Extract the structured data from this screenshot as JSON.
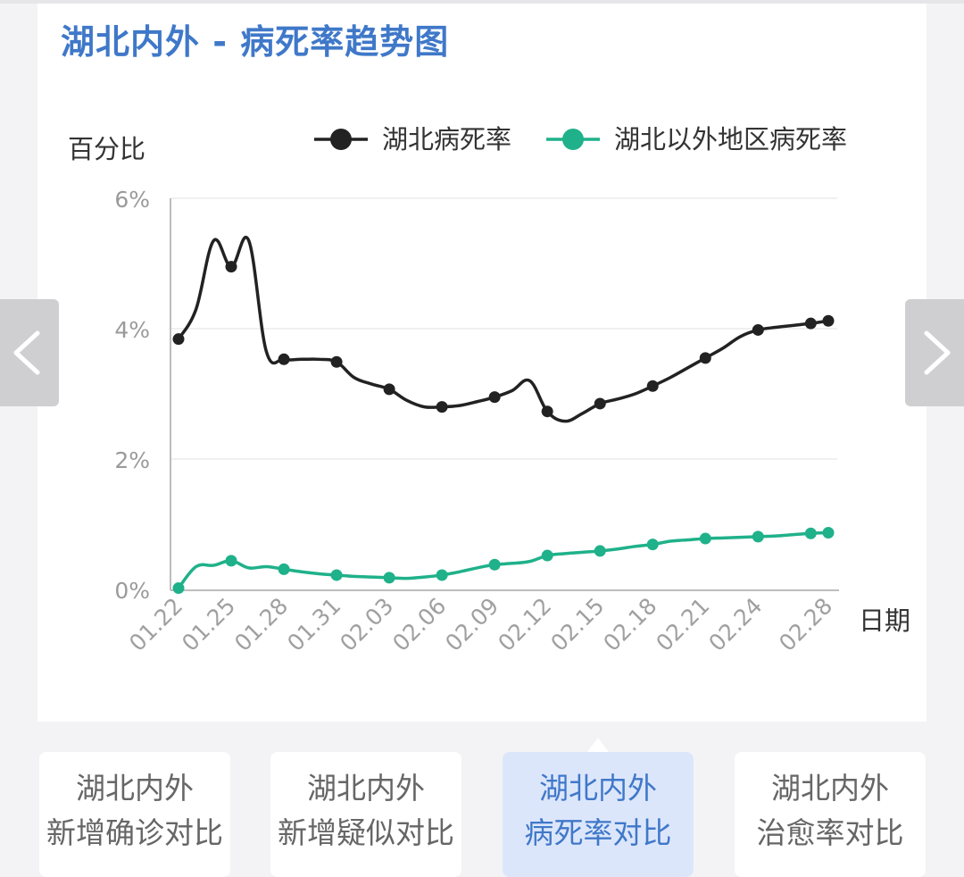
{
  "header": {
    "title": "湖北内外 - 病死率趋势图"
  },
  "chart_data": {
    "type": "line",
    "title": "湖北内外 - 病死率趋势图",
    "ylabel": "百分比",
    "xlabel": "日期",
    "ylim": [
      0,
      6
    ],
    "yticks": [
      "0%",
      "2%",
      "4%",
      "6%"
    ],
    "x_tick_labels": [
      "01.22",
      "01.25",
      "01.28",
      "01.31",
      "02.03",
      "02.06",
      "02.09",
      "02.12",
      "02.15",
      "02.18",
      "02.21",
      "02.24",
      "02.28"
    ],
    "x": [
      "01.22",
      "01.23",
      "01.24",
      "01.25",
      "01.26",
      "01.27",
      "01.28",
      "01.29",
      "01.30",
      "01.31",
      "02.01",
      "02.02",
      "02.03",
      "02.04",
      "02.05",
      "02.06",
      "02.07",
      "02.08",
      "02.09",
      "02.10",
      "02.11",
      "02.12",
      "02.13",
      "02.14",
      "02.15",
      "02.16",
      "02.17",
      "02.18",
      "02.19",
      "02.20",
      "02.21",
      "02.22",
      "02.23",
      "02.24",
      "02.25",
      "02.26",
      "02.27",
      "02.28"
    ],
    "grid": true,
    "legend_position": "top-right",
    "series": [
      {
        "name": "湖北病死率",
        "color": "#222222",
        "values": [
          3.84,
          4.3,
          5.35,
          4.95,
          5.35,
          3.65,
          3.53,
          3.53,
          3.53,
          3.49,
          3.25,
          3.15,
          3.07,
          2.9,
          2.8,
          2.8,
          2.82,
          2.88,
          2.95,
          3.05,
          3.2,
          2.73,
          2.58,
          2.7,
          2.85,
          2.92,
          3.0,
          3.12,
          3.25,
          3.4,
          3.55,
          3.7,
          3.88,
          3.98,
          4.02,
          4.05,
          4.08,
          4.12
        ]
      },
      {
        "name": "湖北以外地区病死率",
        "color": "#1fb18a",
        "values": [
          0.02,
          0.35,
          0.37,
          0.44,
          0.33,
          0.35,
          0.31,
          0.27,
          0.24,
          0.22,
          0.2,
          0.19,
          0.18,
          0.17,
          0.19,
          0.22,
          0.27,
          0.33,
          0.38,
          0.4,
          0.43,
          0.52,
          0.55,
          0.57,
          0.59,
          0.62,
          0.66,
          0.69,
          0.74,
          0.76,
          0.78,
          0.79,
          0.8,
          0.81,
          0.82,
          0.84,
          0.86,
          0.87
        ]
      }
    ]
  },
  "tabs": [
    {
      "line1": "湖北内外",
      "line2": "新增确诊对比",
      "active": false
    },
    {
      "line1": "湖北内外",
      "line2": "新增疑似对比",
      "active": false
    },
    {
      "line1": "湖北内外",
      "line2": "病死率对比",
      "active": true
    },
    {
      "line1": "湖北内外",
      "line2": "治愈率对比",
      "active": false
    }
  ],
  "nav": {
    "prev_icon": "chevron-left-icon",
    "next_icon": "chevron-right-icon"
  }
}
